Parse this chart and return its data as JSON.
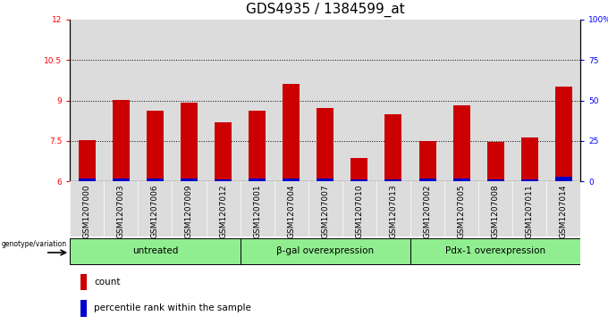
{
  "title": "GDS4935 / 1384599_at",
  "samples": [
    "GSM1207000",
    "GSM1207003",
    "GSM1207006",
    "GSM1207009",
    "GSM1207012",
    "GSM1207001",
    "GSM1207004",
    "GSM1207007",
    "GSM1207010",
    "GSM1207013",
    "GSM1207002",
    "GSM1207005",
    "GSM1207008",
    "GSM1207011",
    "GSM1207014"
  ],
  "count_values": [
    7.52,
    9.02,
    8.62,
    8.92,
    8.2,
    8.62,
    9.62,
    8.72,
    6.88,
    8.5,
    7.5,
    8.82,
    7.48,
    7.62,
    9.52
  ],
  "percentile_values": [
    2.0,
    2.0,
    2.0,
    2.0,
    1.0,
    2.0,
    2.0,
    2.0,
    1.0,
    1.0,
    2.0,
    2.0,
    1.0,
    1.0,
    3.0
  ],
  "ylim_left": [
    6,
    12
  ],
  "ylim_right": [
    0,
    100
  ],
  "yticks_left": [
    6,
    7.5,
    9,
    10.5,
    12
  ],
  "yticks_right": [
    0,
    25,
    50,
    75,
    100
  ],
  "bar_color_red": "#CC0000",
  "bar_color_blue": "#0000CC",
  "bar_width": 0.5,
  "bg_axes": "#DCDCDC",
  "bg_group": "#90EE90",
  "genotype_label": "genotype/variation",
  "legend_count": "count",
  "legend_percentile": "percentile rank within the sample",
  "title_fontsize": 11,
  "tick_fontsize": 6.5,
  "label_fontsize": 7.5,
  "group_labels": [
    "untreated",
    "β-gal overexpression",
    "Pdx-1 overexpression"
  ],
  "group_starts": [
    0,
    5,
    10
  ],
  "group_ends": [
    5,
    10,
    15
  ]
}
